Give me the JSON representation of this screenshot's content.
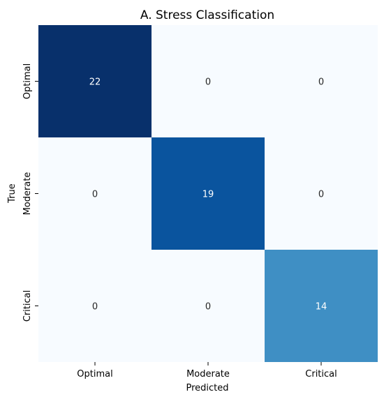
{
  "chart_data": {
    "type": "heatmap",
    "title": "A. Stress Classification",
    "xlabel": "Predicted",
    "ylabel": "True",
    "x_categories": [
      "Optimal",
      "Moderate",
      "Critical"
    ],
    "y_categories": [
      "Optimal",
      "Moderate",
      "Critical"
    ],
    "values": [
      [
        22,
        0,
        0
      ],
      [
        0,
        19,
        0
      ],
      [
        0,
        0,
        14
      ]
    ],
    "colormap": "Blues",
    "vmin": 0,
    "vmax": 22,
    "colors": {
      "low": "#f7fbff",
      "high": "#08306b",
      "light_text": "#ffffff",
      "dark_text": "#262626"
    }
  }
}
